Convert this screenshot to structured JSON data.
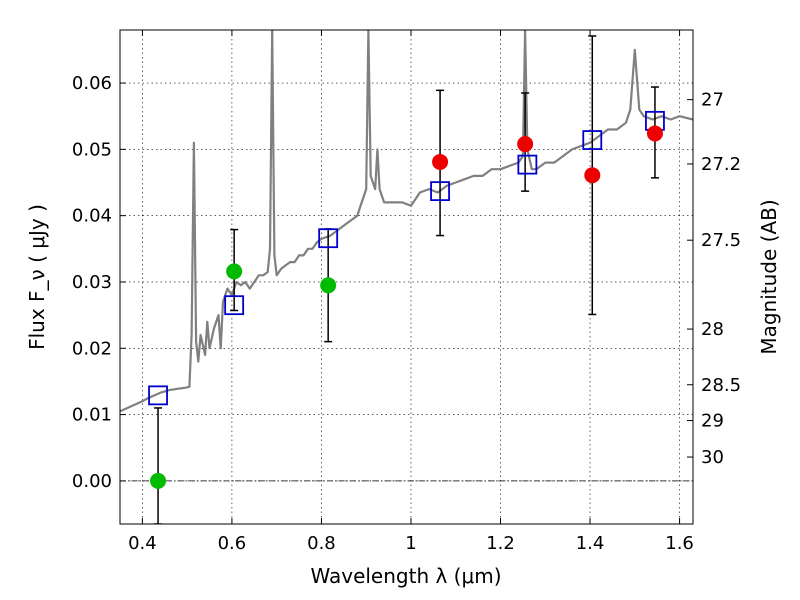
{
  "chart_data": {
    "type": "scatter",
    "xlabel": "Wavelength  λ (μm)",
    "ylabel": "Flux  F_ν  ( μJy )",
    "ylabel_right": "Magnitude (AB)",
    "xlim": [
      0.35,
      1.63
    ],
    "ylim": [
      -0.0065,
      0.068
    ],
    "x_ticks": [
      0.4,
      0.6,
      0.8,
      1.0,
      1.2,
      1.4,
      1.6
    ],
    "x_tick_labels": [
      "0.4",
      "0.6",
      "0.8",
      "1",
      "1.2",
      "1.4",
      "1.6"
    ],
    "y_ticks": [
      0.0,
      0.01,
      0.02,
      0.03,
      0.04,
      0.05,
      0.06
    ],
    "y_tick_labels": [
      "0.00",
      "0.01",
      "0.02",
      "0.03",
      "0.04",
      "0.05",
      "0.06"
    ],
    "right_ticks": [
      {
        "label": "27",
        "flux": 0.0575
      },
      {
        "label": "27.2",
        "flux": 0.0478
      },
      {
        "label": "27.5",
        "flux": 0.0363
      },
      {
        "label": "28",
        "flux": 0.0229
      },
      {
        "label": "28.5",
        "flux": 0.0145
      },
      {
        "label": "29",
        "flux": 0.0091
      },
      {
        "label": "30",
        "flux": 0.0036
      }
    ],
    "grid": true,
    "series": [
      {
        "kind": "line",
        "color": "#808080",
        "points": [
          [
            0.35,
            0.0105
          ],
          [
            0.36,
            0.0108
          ],
          [
            0.37,
            0.0111
          ],
          [
            0.38,
            0.0114
          ],
          [
            0.39,
            0.0117
          ],
          [
            0.4,
            0.012
          ],
          [
            0.41,
            0.0124
          ],
          [
            0.42,
            0.0127
          ],
          [
            0.43,
            0.013
          ],
          [
            0.44,
            0.0133
          ],
          [
            0.45,
            0.0135
          ],
          [
            0.46,
            0.0137
          ],
          [
            0.47,
            0.0138
          ],
          [
            0.48,
            0.0139
          ],
          [
            0.49,
            0.014
          ],
          [
            0.5,
            0.0141
          ],
          [
            0.505,
            0.0142
          ],
          [
            0.51,
            0.022
          ],
          [
            0.515,
            0.051
          ],
          [
            0.52,
            0.021
          ],
          [
            0.525,
            0.018
          ],
          [
            0.53,
            0.022
          ],
          [
            0.54,
            0.019
          ],
          [
            0.545,
            0.024
          ],
          [
            0.55,
            0.02
          ],
          [
            0.56,
            0.023
          ],
          [
            0.57,
            0.025
          ],
          [
            0.575,
            0.02
          ],
          [
            0.58,
            0.027
          ],
          [
            0.59,
            0.029
          ],
          [
            0.6,
            0.028
          ],
          [
            0.61,
            0.03
          ],
          [
            0.62,
            0.0295
          ],
          [
            0.63,
            0.03
          ],
          [
            0.64,
            0.029
          ],
          [
            0.65,
            0.03
          ],
          [
            0.66,
            0.031
          ],
          [
            0.67,
            0.031
          ],
          [
            0.68,
            0.0315
          ],
          [
            0.685,
            0.035
          ],
          [
            0.69,
            0.068
          ],
          [
            0.695,
            0.034
          ],
          [
            0.7,
            0.031
          ],
          [
            0.71,
            0.032
          ],
          [
            0.72,
            0.0325
          ],
          [
            0.73,
            0.033
          ],
          [
            0.74,
            0.033
          ],
          [
            0.75,
            0.034
          ],
          [
            0.76,
            0.034
          ],
          [
            0.77,
            0.035
          ],
          [
            0.78,
            0.035
          ],
          [
            0.79,
            0.036
          ],
          [
            0.8,
            0.0365
          ],
          [
            0.82,
            0.037
          ],
          [
            0.84,
            0.038
          ],
          [
            0.86,
            0.039
          ],
          [
            0.88,
            0.04
          ],
          [
            0.89,
            0.042
          ],
          [
            0.9,
            0.044
          ],
          [
            0.905,
            0.068
          ],
          [
            0.91,
            0.046
          ],
          [
            0.915,
            0.045
          ],
          [
            0.92,
            0.044
          ],
          [
            0.925,
            0.05
          ],
          [
            0.93,
            0.044
          ],
          [
            0.94,
            0.042
          ],
          [
            0.96,
            0.042
          ],
          [
            0.98,
            0.042
          ],
          [
            1.0,
            0.0415
          ],
          [
            1.02,
            0.0435
          ],
          [
            1.04,
            0.044
          ],
          [
            1.06,
            0.0435
          ],
          [
            1.08,
            0.0445
          ],
          [
            1.1,
            0.045
          ],
          [
            1.12,
            0.0455
          ],
          [
            1.14,
            0.046
          ],
          [
            1.16,
            0.046
          ],
          [
            1.18,
            0.047
          ],
          [
            1.2,
            0.047
          ],
          [
            1.22,
            0.0475
          ],
          [
            1.24,
            0.048
          ],
          [
            1.25,
            0.049
          ],
          [
            1.255,
            0.068
          ],
          [
            1.26,
            0.05
          ],
          [
            1.27,
            0.047
          ],
          [
            1.28,
            0.047
          ],
          [
            1.3,
            0.048
          ],
          [
            1.32,
            0.048
          ],
          [
            1.34,
            0.049
          ],
          [
            1.36,
            0.05
          ],
          [
            1.38,
            0.0505
          ],
          [
            1.4,
            0.051
          ],
          [
            1.42,
            0.052
          ],
          [
            1.44,
            0.053
          ],
          [
            1.46,
            0.053
          ],
          [
            1.48,
            0.054
          ],
          [
            1.49,
            0.056
          ],
          [
            1.5,
            0.065
          ],
          [
            1.51,
            0.056
          ],
          [
            1.52,
            0.055
          ],
          [
            1.54,
            0.0545
          ],
          [
            1.56,
            0.055
          ],
          [
            1.58,
            0.0545
          ],
          [
            1.6,
            0.055
          ],
          [
            1.63,
            0.0545
          ]
        ]
      },
      {
        "kind": "model_boxes",
        "color": "#0000cc",
        "x": [
          0.435,
          0.605,
          0.815,
          1.065,
          1.26,
          1.405,
          1.545
        ],
        "y": [
          0.0129,
          0.0265,
          0.0366,
          0.0437,
          0.0477,
          0.0514,
          0.0543
        ]
      },
      {
        "kind": "points",
        "color": "#00bb00",
        "x": [
          0.435,
          0.605,
          0.815
        ],
        "y": [
          0.0,
          0.0316,
          0.0295
        ],
        "yerr_low": [
          0.0065,
          0.0059,
          0.0085
        ],
        "yerr_high": [
          0.011,
          0.0063,
          0.0085
        ]
      },
      {
        "kind": "points",
        "color": "#ee0000",
        "x": [
          1.065,
          1.255,
          1.405,
          1.545
        ],
        "y": [
          0.0481,
          0.0508,
          0.0461,
          0.0524
        ],
        "yerr_low": [
          0.0111,
          0.0071,
          0.021,
          0.0067
        ],
        "yerr_high": [
          0.0108,
          0.0077,
          0.021,
          0.007
        ]
      }
    ]
  }
}
